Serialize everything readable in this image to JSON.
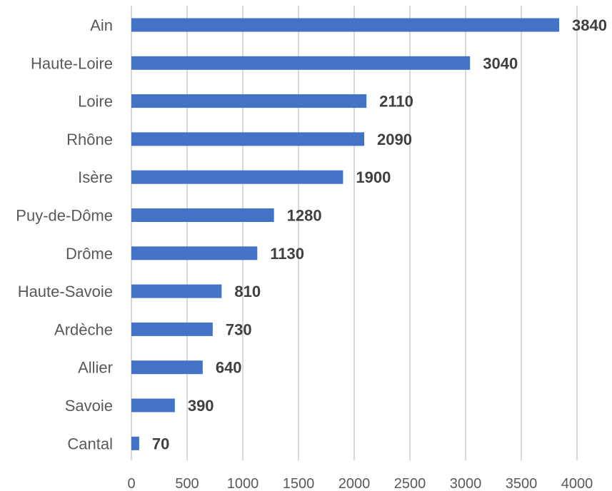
{
  "chart_data": {
    "type": "bar",
    "orientation": "horizontal",
    "title": "",
    "xlabel": "",
    "ylabel": "",
    "categories": [
      "Ain",
      "Haute-Loire",
      "Loire",
      "Rhône",
      "Isère",
      "Puy-de-Dôme",
      "Drôme",
      "Haute-Savoie",
      "Ardèche",
      "Allier",
      "Savoie",
      "Cantal"
    ],
    "values": [
      3840,
      3040,
      2110,
      2090,
      1900,
      1280,
      1130,
      810,
      730,
      640,
      390,
      70
    ],
    "xlim": [
      0,
      4000
    ],
    "xticks": [
      0,
      500,
      1000,
      1500,
      2000,
      2500,
      3000,
      3500,
      4000
    ],
    "grid": "vertical",
    "data_labels": true,
    "legend": "none",
    "colors": {
      "bar": "#4472C4",
      "grid": "#d9d9d9",
      "text": "#595959",
      "data_label": "#404040"
    }
  }
}
